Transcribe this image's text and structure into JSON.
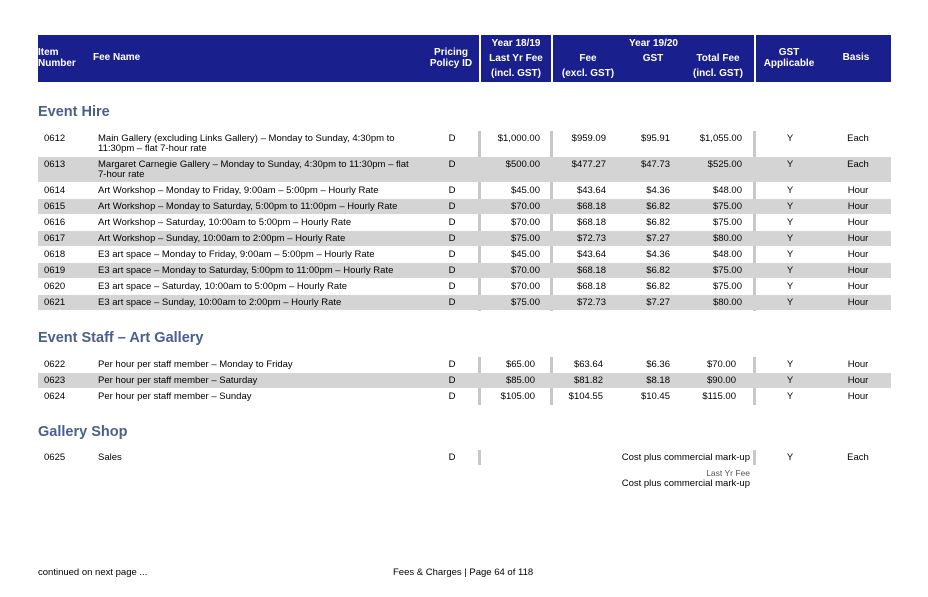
{
  "header": {
    "item_number_1": "Item",
    "item_number_2": "Number",
    "fee_name": "Fee Name",
    "pricing_1": "Pricing",
    "pricing_2": "Policy ID",
    "year1819": "Year 18/19",
    "last_yr_fee_1": "Last Yr Fee",
    "last_yr_fee_2": "(incl. GST)",
    "year1920": "Year 19/20",
    "fee_1": "Fee",
    "fee_2": "(excl. GST)",
    "gst": "GST",
    "total_fee_1": "Total Fee",
    "total_fee_2": "(incl. GST)",
    "gst_applicable_1": "GST",
    "gst_applicable_2": "Applicable",
    "basis": "Basis"
  },
  "sections": [
    {
      "title": "Event Hire",
      "rows": [
        {
          "item": "0612",
          "name": "Main Gallery (excluding Links Gallery) – Monday to Sunday, 4:30pm to 11:30pm – flat 7-hour rate",
          "policy": "D",
          "last": "$1,000.00",
          "fee": "$959.09",
          "gst": "$95.91",
          "total": "$1,055.00",
          "gst_app": "Y",
          "basis": "Each"
        },
        {
          "item": "0613",
          "name": "Margaret Carnegie Gallery – Monday to Sunday, 4:30pm to 11:30pm – flat 7-hour rate",
          "policy": "D",
          "last": "$500.00",
          "fee": "$477.27",
          "gst": "$47.73",
          "total": "$525.00",
          "gst_app": "Y",
          "basis": "Each"
        },
        {
          "item": "0614",
          "name": "Art Workshop – Monday to Friday, 9:00am – 5:00pm – Hourly Rate",
          "policy": "D",
          "last": "$45.00",
          "fee": "$43.64",
          "gst": "$4.36",
          "total": "$48.00",
          "gst_app": "Y",
          "basis": "Hour"
        },
        {
          "item": "0615",
          "name": "Art Workshop – Monday to Saturday, 5:00pm to 11:00pm – Hourly Rate",
          "policy": "D",
          "last": "$70.00",
          "fee": "$68.18",
          "gst": "$6.82",
          "total": "$75.00",
          "gst_app": "Y",
          "basis": "Hour"
        },
        {
          "item": "0616",
          "name": "Art Workshop – Saturday, 10:00am to 5:00pm – Hourly Rate",
          "policy": "D",
          "last": "$70.00",
          "fee": "$68.18",
          "gst": "$6.82",
          "total": "$75.00",
          "gst_app": "Y",
          "basis": "Hour"
        },
        {
          "item": "0617",
          "name": "Art Workshop – Sunday, 10:00am to 2:00pm – Hourly Rate",
          "policy": "D",
          "last": "$75.00",
          "fee": "$72.73",
          "gst": "$7.27",
          "total": "$80.00",
          "gst_app": "Y",
          "basis": "Hour"
        },
        {
          "item": "0618",
          "name": "E3 art space – Monday to Friday, 9:00am – 5:00pm – Hourly Rate",
          "policy": "D",
          "last": "$45.00",
          "fee": "$43.64",
          "gst": "$4.36",
          "total": "$48.00",
          "gst_app": "Y",
          "basis": "Hour"
        },
        {
          "item": "0619",
          "name": "E3 art space – Monday to Saturday, 5:00pm to 11:00pm – Hourly Rate",
          "policy": "D",
          "last": "$70.00",
          "fee": "$68.18",
          "gst": "$6.82",
          "total": "$75.00",
          "gst_app": "Y",
          "basis": "Hour"
        },
        {
          "item": "0620",
          "name": "E3 art space – Saturday, 10:00am to 5:00pm – Hourly Rate",
          "policy": "D",
          "last": "$70.00",
          "fee": "$68.18",
          "gst": "$6.82",
          "total": "$75.00",
          "gst_app": "Y",
          "basis": "Hour"
        },
        {
          "item": "0621",
          "name": "E3 art space – Sunday, 10:00am to 2:00pm – Hourly Rate",
          "policy": "D",
          "last": "$75.00",
          "fee": "$72.73",
          "gst": "$7.27",
          "total": "$80.00",
          "gst_app": "Y",
          "basis": "Hour"
        }
      ]
    },
    {
      "title": "Event Staff – Art Gallery",
      "rows": [
        {
          "item": "0622",
          "name": "Per hour per staff member – Monday to Friday",
          "policy": "D",
          "last": "$65.00",
          "fee": "$63.64",
          "gst": "$6.36",
          "total": "$70.00",
          "gst_app": "Y",
          "basis": "Hour"
        },
        {
          "item": "0623",
          "name": "Per hour per staff member – Saturday",
          "policy": "D",
          "last": "$85.00",
          "fee": "$81.82",
          "gst": "$8.18",
          "total": "$90.00",
          "gst_app": "Y",
          "basis": "Hour"
        },
        {
          "item": "0624",
          "name": "Per hour per staff member – Sunday",
          "policy": "D",
          "last": "$105.00",
          "fee": "$104.55",
          "gst": "$10.45",
          "total": "$115.00",
          "gst_app": "Y",
          "basis": "Hour"
        }
      ]
    },
    {
      "title": "Gallery Shop",
      "rows": [
        {
          "item": "0625",
          "name": "Sales",
          "policy": "D",
          "fee_text": "Cost plus commercial mark-up",
          "gst_app": "Y",
          "basis": "Each"
        }
      ]
    }
  ],
  "shop_note": {
    "label": "Last Yr Fee",
    "value": "Cost plus commercial mark-up"
  },
  "footer": {
    "continued": "continued on next page ...",
    "page": "Fees & Charges | Page 64 of 118"
  }
}
